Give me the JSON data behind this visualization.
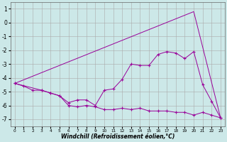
{
  "xlabel": "Windchill (Refroidissement éolien,°C)",
  "bg_color": "#cce8e8",
  "grid_color": "#aaaaaa",
  "line_color": "#990099",
  "xlim": [
    -0.5,
    23.5
  ],
  "ylim": [
    -7.5,
    1.5
  ],
  "yticks": [
    1,
    0,
    -1,
    -2,
    -3,
    -4,
    -5,
    -6,
    -7
  ],
  "xticks": [
    0,
    1,
    2,
    3,
    4,
    5,
    6,
    7,
    8,
    9,
    10,
    11,
    12,
    13,
    14,
    15,
    16,
    17,
    18,
    19,
    20,
    21,
    22,
    23
  ],
  "line1_x": [
    0,
    1,
    2,
    3,
    4,
    5,
    6,
    7,
    8,
    9,
    10,
    11,
    12,
    13,
    14,
    15,
    16,
    17,
    18,
    19,
    20,
    21,
    22,
    23
  ],
  "line1_y": [
    -4.4,
    -4.6,
    -4.9,
    -4.9,
    -5.1,
    -5.3,
    -6.0,
    -6.1,
    -6.0,
    -6.1,
    -6.3,
    -6.3,
    -6.2,
    -6.3,
    -6.2,
    -6.4,
    -6.4,
    -6.4,
    -6.5,
    -6.5,
    -6.7,
    -6.5,
    -6.7,
    -6.9
  ],
  "line2_x": [
    0,
    3,
    4,
    5,
    6,
    7,
    8,
    9,
    10,
    11,
    12,
    13,
    14,
    15,
    16,
    17,
    18,
    19,
    20,
    21,
    22,
    23
  ],
  "line2_y": [
    -4.4,
    -4.9,
    -5.1,
    -5.3,
    -5.8,
    -5.6,
    -5.6,
    -6.0,
    -4.9,
    -4.8,
    -4.1,
    -3.0,
    -3.1,
    -3.1,
    -2.3,
    -2.1,
    -2.2,
    -2.6,
    -2.1,
    -4.5,
    -5.7,
    -6.9
  ],
  "line3_x": [
    0,
    20,
    23
  ],
  "line3_y": [
    -4.4,
    0.8,
    -6.9
  ]
}
